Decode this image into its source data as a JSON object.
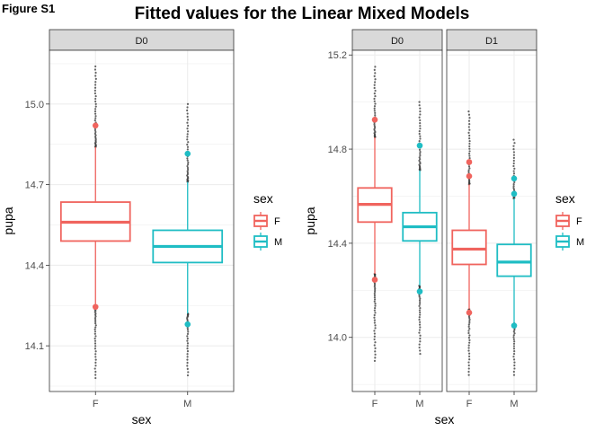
{
  "figure_label": "Figure S1",
  "title": "Fitted values for the Linear Mixed Models",
  "colors": {
    "F": "#F0645E",
    "M": "#1FBDC4",
    "strip_bg": "#D9D9D9",
    "grid": "#EBEBEB",
    "outlier": "#333333"
  },
  "chart_data": [
    {
      "type": "boxplot",
      "title": "",
      "xlabel": "sex",
      "ylabel": "pupa",
      "ylim": [
        13.93,
        15.2
      ],
      "yticks": [
        14.1,
        14.4,
        14.7,
        15.0
      ],
      "ytick_labels": [
        "14.1",
        "14.4",
        "14.7",
        "15.0"
      ],
      "grid": true,
      "legend": {
        "title": "sex",
        "entries": [
          "F",
          "M"
        ],
        "placement": "right"
      },
      "panels": [
        {
          "strip": "D0",
          "boxes": [
            {
              "category": "F",
              "whisker_low": 14.25,
              "q1": 14.49,
              "median": 14.56,
              "q3": 14.635,
              "whisker_high": 14.84,
              "outlier_low_min": 13.98,
              "outlier_high_max": 15.14,
              "marked_points": [
                14.92,
                14.245
              ]
            },
            {
              "category": "M",
              "whisker_low": 14.22,
              "q1": 14.41,
              "median": 14.47,
              "q3": 14.53,
              "whisker_high": 14.71,
              "outlier_low_min": 13.99,
              "outlier_high_max": 15.0,
              "marked_points": [
                14.815,
                14.18
              ]
            }
          ]
        }
      ]
    },
    {
      "type": "boxplot",
      "title": "",
      "xlabel": "sex",
      "ylabel": "pupa",
      "ylim": [
        13.77,
        15.22
      ],
      "yticks": [
        14.0,
        14.4,
        14.8,
        15.2
      ],
      "ytick_labels": [
        "14.0",
        "14.4",
        "14.8",
        "15.2"
      ],
      "grid": true,
      "legend": {
        "title": "sex",
        "entries": [
          "F",
          "M"
        ],
        "placement": "right"
      },
      "panels": [
        {
          "strip": "D0",
          "boxes": [
            {
              "category": "F",
              "whisker_low": 14.27,
              "q1": 14.49,
              "median": 14.565,
              "q3": 14.635,
              "whisker_high": 14.85,
              "outlier_low_min": 13.9,
              "outlier_high_max": 15.15,
              "marked_points": [
                14.925,
                14.245
              ]
            },
            {
              "category": "M",
              "whisker_low": 14.22,
              "q1": 14.41,
              "median": 14.47,
              "q3": 14.53,
              "whisker_high": 14.71,
              "outlier_low_min": 13.93,
              "outlier_high_max": 15.0,
              "marked_points": [
                14.815,
                14.195
              ]
            }
          ]
        },
        {
          "strip": "D1",
          "boxes": [
            {
              "category": "F",
              "whisker_low": 14.12,
              "q1": 14.31,
              "median": 14.375,
              "q3": 14.455,
              "whisker_high": 14.65,
              "outlier_low_min": 13.84,
              "outlier_high_max": 14.96,
              "marked_points": [
                14.745,
                14.685,
                14.105
              ]
            },
            {
              "category": "M",
              "whisker_low": 14.06,
              "q1": 14.26,
              "median": 14.32,
              "q3": 14.395,
              "whisker_high": 14.59,
              "outlier_low_min": 13.84,
              "outlier_high_max": 14.84,
              "marked_points": [
                14.675,
                14.61,
                14.05
              ]
            }
          ]
        }
      ]
    }
  ]
}
